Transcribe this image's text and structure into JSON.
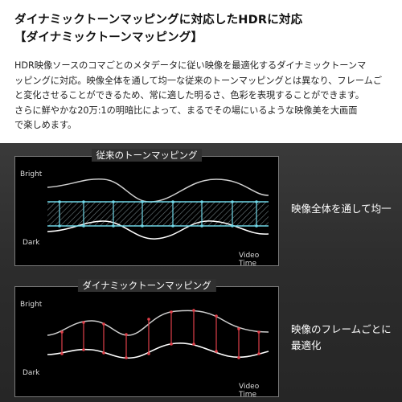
{
  "header": {
    "title_line1": "ダイナミックトーンマッピングに対応したHDRに対応",
    "title_line2": "【ダイナミックトーンマッピング】"
  },
  "description": {
    "line1": "HDR映像ソースのコマごとのメタデータに従い映像を最適化するダイナミックトーンマ",
    "line2": "ッピングに対応。映像全体を通して均一な従来のトーンマッピングとは異なり、フレームご",
    "line3": "と変化させることができるため、常に適した明るさ、色彩を表現することができます。",
    "line4": "さらに鮮やかな20万:1の明暗比によって、まるでその場にいるような映像美を大画面",
    "line5": "で楽しめます。"
  },
  "diagram_static": {
    "title": "従来のトーンマッピング",
    "bright_label": "Bright",
    "dark_label": "Dark",
    "x_label": "Video Time",
    "caption": "映像全体を通して均一"
  },
  "diagram_dynamic": {
    "title": "ダイナミックトーンマッピング",
    "bright_label": "Bright",
    "dark_label": "Dark",
    "x_label": "Video Time",
    "caption_line1": "映像のフレームごとに",
    "caption_line2": "最適化"
  },
  "colors": {
    "static_band": "#6fd6e6",
    "dynamic_markers": "#e0404a",
    "curve": "#ffffff"
  }
}
